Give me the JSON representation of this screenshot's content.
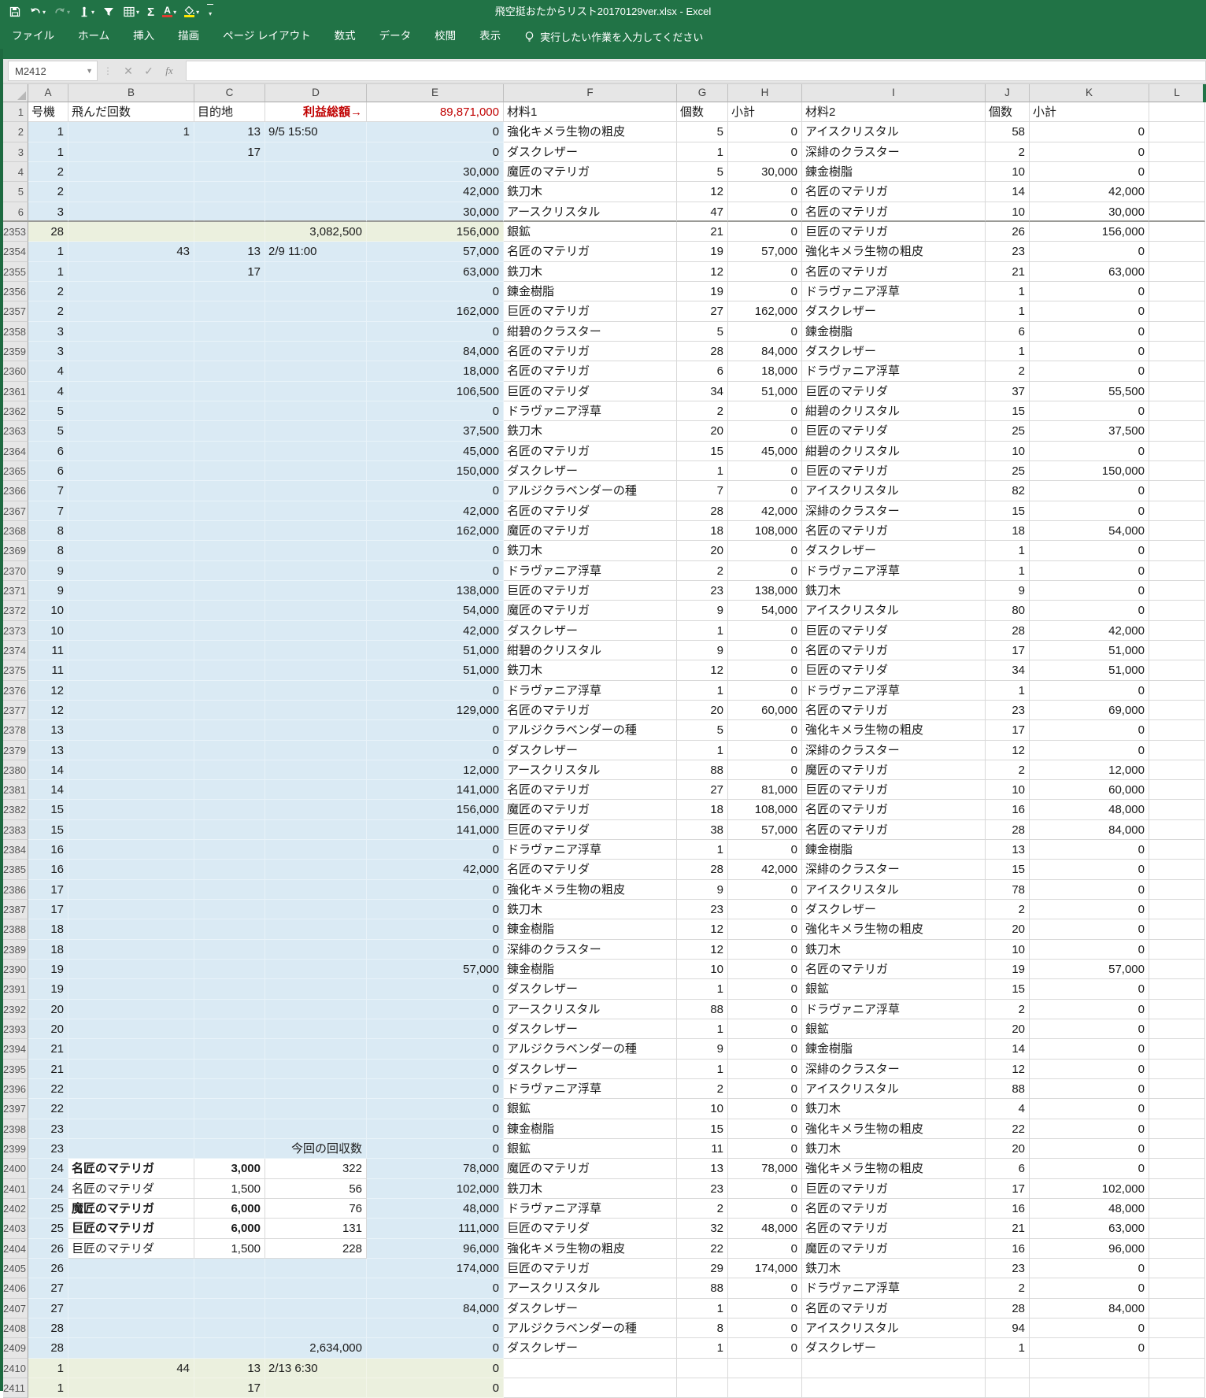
{
  "title_bar": {
    "title": "飛空挺おたからリスト20170129ver.xlsx  -  Excel",
    "qat_icons": [
      "save-icon",
      "undo-icon",
      "redo-icon",
      "touch-mode-icon",
      "filter-icon",
      "table-icon",
      "autosum-icon",
      "font-color-icon",
      "fill-color-icon",
      "customize-quick-access-icon"
    ],
    "autosum_glyph": "Σ",
    "font_color_glyph": "A"
  },
  "ribbon": {
    "tabs": [
      "ファイル",
      "ホーム",
      "挿入",
      "描画",
      "ページ レイアウト",
      "数式",
      "データ",
      "校閲",
      "表示"
    ],
    "tell_me": "実行したい作業を入力してください"
  },
  "formula_bar": {
    "name_box": "M2412",
    "cancel_glyph": "✕",
    "enter_glyph": "✓",
    "fx_label": "fx",
    "formula": ""
  },
  "colors": {
    "excel_green": "#217346",
    "fill_blue": "#daeaf4",
    "fill_yellow": "#ebf0de",
    "accent_red": "#c00000"
  },
  "grid": {
    "column_letters": [
      "A",
      "B",
      "C",
      "D",
      "E",
      "F",
      "G",
      "H",
      "I",
      "J",
      "K",
      "L"
    ],
    "right_align_labels": [
      "利益総額→",
      "今回の回収数"
    ],
    "rows": [
      {
        "n": "1",
        "a": "号機",
        "b": "飛んだ回数",
        "c": "目的地",
        "d": "利益総額→",
        "e": "89,871,000",
        "f": "材料1",
        "g": "個数",
        "h": "小計",
        "i": "材料2",
        "j": "個数",
        "k": "小計",
        "head": 1
      },
      {
        "n": "2",
        "a": "1",
        "b": "1",
        "c": "13",
        "d": "9/5 15:50",
        "e": "0",
        "f": "強化キメラ生物の粗皮",
        "g": "5",
        "h": "0",
        "i": "アイスクリスタル",
        "j": "58",
        "k": "0"
      },
      {
        "n": "3",
        "a": "1",
        "c": "17",
        "e": "0",
        "f": "ダスクレザー",
        "g": "1",
        "h": "0",
        "i": "深緋のクラスター",
        "j": "2",
        "k": "0"
      },
      {
        "n": "4",
        "a": "2",
        "e": "30,000",
        "f": "魔匠のマテリガ",
        "g": "5",
        "h": "30,000",
        "i": "錬金樹脂",
        "j": "10",
        "k": "0"
      },
      {
        "n": "5",
        "a": "2",
        "e": "42,000",
        "f": "鉄刀木",
        "g": "12",
        "h": "0",
        "i": "名匠のマテリガ",
        "j": "14",
        "k": "42,000"
      },
      {
        "n": "6",
        "a": "3",
        "e": "30,000",
        "f": "アースクリスタル",
        "g": "47",
        "h": "0",
        "i": "名匠のマテリガ",
        "j": "10",
        "k": "30,000",
        "thick": 1
      },
      {
        "n": "2353",
        "a": "28",
        "d": "3,082,500",
        "e": "156,000",
        "f": "銀鉱",
        "g": "21",
        "h": "0",
        "i": "巨匠のマテリガ",
        "j": "26",
        "k": "156,000",
        "hl": 1
      },
      {
        "n": "2354",
        "a": "1",
        "b": "43",
        "c": "13",
        "d": "2/9 11:00",
        "e": "57,000",
        "f": "名匠のマテリガ",
        "g": "19",
        "h": "57,000",
        "i": "強化キメラ生物の粗皮",
        "j": "23",
        "k": "0"
      },
      {
        "n": "2355",
        "a": "1",
        "c": "17",
        "e": "63,000",
        "f": "鉄刀木",
        "g": "12",
        "h": "0",
        "i": "名匠のマテリガ",
        "j": "21",
        "k": "63,000"
      },
      {
        "n": "2356",
        "a": "2",
        "e": "0",
        "f": "錬金樹脂",
        "g": "19",
        "h": "0",
        "i": "ドラヴァニア浮草",
        "j": "1",
        "k": "0"
      },
      {
        "n": "2357",
        "a": "2",
        "e": "162,000",
        "f": "巨匠のマテリガ",
        "g": "27",
        "h": "162,000",
        "i": "ダスクレザー",
        "j": "1",
        "k": "0"
      },
      {
        "n": "2358",
        "a": "3",
        "e": "0",
        "f": "紺碧のクラスター",
        "g": "5",
        "h": "0",
        "i": "錬金樹脂",
        "j": "6",
        "k": "0"
      },
      {
        "n": "2359",
        "a": "3",
        "e": "84,000",
        "f": "名匠のマテリガ",
        "g": "28",
        "h": "84,000",
        "i": "ダスクレザー",
        "j": "1",
        "k": "0"
      },
      {
        "n": "2360",
        "a": "4",
        "e": "18,000",
        "f": "名匠のマテリガ",
        "g": "6",
        "h": "18,000",
        "i": "ドラヴァニア浮草",
        "j": "2",
        "k": "0"
      },
      {
        "n": "2361",
        "a": "4",
        "e": "106,500",
        "f": "巨匠のマテリダ",
        "g": "34",
        "h": "51,000",
        "i": "巨匠のマテリダ",
        "j": "37",
        "k": "55,500"
      },
      {
        "n": "2362",
        "a": "5",
        "e": "0",
        "f": "ドラヴァニア浮草",
        "g": "2",
        "h": "0",
        "i": "紺碧のクリスタル",
        "j": "15",
        "k": "0"
      },
      {
        "n": "2363",
        "a": "5",
        "e": "37,500",
        "f": "鉄刀木",
        "g": "20",
        "h": "0",
        "i": "巨匠のマテリダ",
        "j": "25",
        "k": "37,500"
      },
      {
        "n": "2364",
        "a": "6",
        "e": "45,000",
        "f": "名匠のマテリガ",
        "g": "15",
        "h": "45,000",
        "i": "紺碧のクリスタル",
        "j": "10",
        "k": "0"
      },
      {
        "n": "2365",
        "a": "6",
        "e": "150,000",
        "f": "ダスクレザー",
        "g": "1",
        "h": "0",
        "i": "巨匠のマテリガ",
        "j": "25",
        "k": "150,000"
      },
      {
        "n": "2366",
        "a": "7",
        "e": "0",
        "f": "アルジクラベンダーの種",
        "g": "7",
        "h": "0",
        "i": "アイスクリスタル",
        "j": "82",
        "k": "0"
      },
      {
        "n": "2367",
        "a": "7",
        "e": "42,000",
        "f": "名匠のマテリダ",
        "g": "28",
        "h": "42,000",
        "i": "深緋のクラスター",
        "j": "15",
        "k": "0"
      },
      {
        "n": "2368",
        "a": "8",
        "e": "162,000",
        "f": "魔匠のマテリガ",
        "g": "18",
        "h": "108,000",
        "i": "名匠のマテリガ",
        "j": "18",
        "k": "54,000"
      },
      {
        "n": "2369",
        "a": "8",
        "e": "0",
        "f": "鉄刀木",
        "g": "20",
        "h": "0",
        "i": "ダスクレザー",
        "j": "1",
        "k": "0"
      },
      {
        "n": "2370",
        "a": "9",
        "e": "0",
        "f": "ドラヴァニア浮草",
        "g": "2",
        "h": "0",
        "i": "ドラヴァニア浮草",
        "j": "1",
        "k": "0"
      },
      {
        "n": "2371",
        "a": "9",
        "e": "138,000",
        "f": "巨匠のマテリガ",
        "g": "23",
        "h": "138,000",
        "i": "鉄刀木",
        "j": "9",
        "k": "0"
      },
      {
        "n": "2372",
        "a": "10",
        "e": "54,000",
        "f": "魔匠のマテリガ",
        "g": "9",
        "h": "54,000",
        "i": "アイスクリスタル",
        "j": "80",
        "k": "0"
      },
      {
        "n": "2373",
        "a": "10",
        "e": "42,000",
        "f": "ダスクレザー",
        "g": "1",
        "h": "0",
        "i": "巨匠のマテリダ",
        "j": "28",
        "k": "42,000"
      },
      {
        "n": "2374",
        "a": "11",
        "e": "51,000",
        "f": "紺碧のクリスタル",
        "g": "9",
        "h": "0",
        "i": "名匠のマテリガ",
        "j": "17",
        "k": "51,000"
      },
      {
        "n": "2375",
        "a": "11",
        "e": "51,000",
        "f": "鉄刀木",
        "g": "12",
        "h": "0",
        "i": "巨匠のマテリダ",
        "j": "34",
        "k": "51,000"
      },
      {
        "n": "2376",
        "a": "12",
        "e": "0",
        "f": "ドラヴァニア浮草",
        "g": "1",
        "h": "0",
        "i": "ドラヴァニア浮草",
        "j": "1",
        "k": "0"
      },
      {
        "n": "2377",
        "a": "12",
        "e": "129,000",
        "f": "名匠のマテリガ",
        "g": "20",
        "h": "60,000",
        "i": "名匠のマテリガ",
        "j": "23",
        "k": "69,000"
      },
      {
        "n": "2378",
        "a": "13",
        "e": "0",
        "f": "アルジクラベンダーの種",
        "g": "5",
        "h": "0",
        "i": "強化キメラ生物の粗皮",
        "j": "17",
        "k": "0"
      },
      {
        "n": "2379",
        "a": "13",
        "e": "0",
        "f": "ダスクレザー",
        "g": "1",
        "h": "0",
        "i": "深緋のクラスター",
        "j": "12",
        "k": "0"
      },
      {
        "n": "2380",
        "a": "14",
        "e": "12,000",
        "f": "アースクリスタル",
        "g": "88",
        "h": "0",
        "i": "魔匠のマテリガ",
        "j": "2",
        "k": "12,000"
      },
      {
        "n": "2381",
        "a": "14",
        "e": "141,000",
        "f": "名匠のマテリガ",
        "g": "27",
        "h": "81,000",
        "i": "巨匠のマテリガ",
        "j": "10",
        "k": "60,000"
      },
      {
        "n": "2382",
        "a": "15",
        "e": "156,000",
        "f": "魔匠のマテリガ",
        "g": "18",
        "h": "108,000",
        "i": "名匠のマテリガ",
        "j": "16",
        "k": "48,000"
      },
      {
        "n": "2383",
        "a": "15",
        "e": "141,000",
        "f": "巨匠のマテリダ",
        "g": "38",
        "h": "57,000",
        "i": "名匠のマテリガ",
        "j": "28",
        "k": "84,000"
      },
      {
        "n": "2384",
        "a": "16",
        "e": "0",
        "f": "ドラヴァニア浮草",
        "g": "1",
        "h": "0",
        "i": "錬金樹脂",
        "j": "13",
        "k": "0"
      },
      {
        "n": "2385",
        "a": "16",
        "e": "42,000",
        "f": "名匠のマテリダ",
        "g": "28",
        "h": "42,000",
        "i": "深緋のクラスター",
        "j": "15",
        "k": "0"
      },
      {
        "n": "2386",
        "a": "17",
        "e": "0",
        "f": "強化キメラ生物の粗皮",
        "g": "9",
        "h": "0",
        "i": "アイスクリスタル",
        "j": "78",
        "k": "0"
      },
      {
        "n": "2387",
        "a": "17",
        "e": "0",
        "f": "鉄刀木",
        "g": "23",
        "h": "0",
        "i": "ダスクレザー",
        "j": "2",
        "k": "0"
      },
      {
        "n": "2388",
        "a": "18",
        "e": "0",
        "f": "錬金樹脂",
        "g": "12",
        "h": "0",
        "i": "強化キメラ生物の粗皮",
        "j": "20",
        "k": "0"
      },
      {
        "n": "2389",
        "a": "18",
        "e": "0",
        "f": "深緋のクラスター",
        "g": "12",
        "h": "0",
        "i": "鉄刀木",
        "j": "10",
        "k": "0"
      },
      {
        "n": "2390",
        "a": "19",
        "e": "57,000",
        "f": "錬金樹脂",
        "g": "10",
        "h": "0",
        "i": "名匠のマテリガ",
        "j": "19",
        "k": "57,000"
      },
      {
        "n": "2391",
        "a": "19",
        "e": "0",
        "f": "ダスクレザー",
        "g": "1",
        "h": "0",
        "i": "銀鉱",
        "j": "15",
        "k": "0"
      },
      {
        "n": "2392",
        "a": "20",
        "e": "0",
        "f": "アースクリスタル",
        "g": "88",
        "h": "0",
        "i": "ドラヴァニア浮草",
        "j": "2",
        "k": "0"
      },
      {
        "n": "2393",
        "a": "20",
        "e": "0",
        "f": "ダスクレザー",
        "g": "1",
        "h": "0",
        "i": "銀鉱",
        "j": "20",
        "k": "0"
      },
      {
        "n": "2394",
        "a": "21",
        "e": "0",
        "f": "アルジクラベンダーの種",
        "g": "9",
        "h": "0",
        "i": "錬金樹脂",
        "j": "14",
        "k": "0"
      },
      {
        "n": "2395",
        "a": "21",
        "e": "0",
        "f": "ダスクレザー",
        "g": "1",
        "h": "0",
        "i": "深緋のクラスター",
        "j": "12",
        "k": "0"
      },
      {
        "n": "2396",
        "a": "22",
        "e": "0",
        "f": "ドラヴァニア浮草",
        "g": "2",
        "h": "0",
        "i": "アイスクリスタル",
        "j": "88",
        "k": "0"
      },
      {
        "n": "2397",
        "a": "22",
        "e": "0",
        "f": "銀鉱",
        "g": "10",
        "h": "0",
        "i": "鉄刀木",
        "j": "4",
        "k": "0"
      },
      {
        "n": "2398",
        "a": "23",
        "e": "0",
        "f": "錬金樹脂",
        "g": "15",
        "h": "0",
        "i": "強化キメラ生物の粗皮",
        "j": "22",
        "k": "0"
      },
      {
        "n": "2399",
        "a": "23",
        "d": "今回の回収数",
        "e": "0",
        "f": "銀鉱",
        "g": "11",
        "h": "0",
        "i": "鉄刀木",
        "j": "20",
        "k": "0"
      },
      {
        "n": "2400",
        "a": "24",
        "b": "名匠のマテリガ",
        "c": "3,000",
        "d": "322",
        "e": "78,000",
        "f": "魔匠のマテリガ",
        "g": "13",
        "h": "78,000",
        "i": "強化キメラ生物の粗皮",
        "j": "6",
        "k": "0",
        "leg": 1,
        "bold": 1
      },
      {
        "n": "2401",
        "a": "24",
        "b": "名匠のマテリダ",
        "c": "1,500",
        "d": "56",
        "e": "102,000",
        "f": "鉄刀木",
        "g": "23",
        "h": "0",
        "i": "巨匠のマテリガ",
        "j": "17",
        "k": "102,000",
        "leg": 1
      },
      {
        "n": "2402",
        "a": "25",
        "b": "魔匠のマテリガ",
        "c": "6,000",
        "d": "76",
        "e": "48,000",
        "f": "ドラヴァニア浮草",
        "g": "2",
        "h": "0",
        "i": "名匠のマテリガ",
        "j": "16",
        "k": "48,000",
        "leg": 1,
        "bold": 1
      },
      {
        "n": "2403",
        "a": "25",
        "b": "巨匠のマテリガ",
        "c": "6,000",
        "d": "131",
        "e": "111,000",
        "f": "巨匠のマテリダ",
        "g": "32",
        "h": "48,000",
        "i": "名匠のマテリガ",
        "j": "21",
        "k": "63,000",
        "leg": 1,
        "bold": 1
      },
      {
        "n": "2404",
        "a": "26",
        "b": "巨匠のマテリダ",
        "c": "1,500",
        "d": "228",
        "e": "96,000",
        "f": "強化キメラ生物の粗皮",
        "g": "22",
        "h": "0",
        "i": "魔匠のマテリガ",
        "j": "16",
        "k": "96,000",
        "leg": 1
      },
      {
        "n": "2405",
        "a": "26",
        "e": "174,000",
        "f": "巨匠のマテリガ",
        "g": "29",
        "h": "174,000",
        "i": "鉄刀木",
        "j": "23",
        "k": "0"
      },
      {
        "n": "2406",
        "a": "27",
        "e": "0",
        "f": "アースクリスタル",
        "g": "88",
        "h": "0",
        "i": "ドラヴァニア浮草",
        "j": "2",
        "k": "0"
      },
      {
        "n": "2407",
        "a": "27",
        "e": "84,000",
        "f": "ダスクレザー",
        "g": "1",
        "h": "0",
        "i": "名匠のマテリガ",
        "j": "28",
        "k": "84,000"
      },
      {
        "n": "2408",
        "a": "28",
        "e": "0",
        "f": "アルジクラベンダーの種",
        "g": "8",
        "h": "0",
        "i": "アイスクリスタル",
        "j": "94",
        "k": "0"
      },
      {
        "n": "2409",
        "a": "28",
        "d": "2,634,000",
        "e": "0",
        "f": "ダスクレザー",
        "g": "1",
        "h": "0",
        "i": "ダスクレザー",
        "j": "1",
        "k": "0"
      },
      {
        "n": "2410",
        "a": "1",
        "b": "44",
        "c": "13",
        "d": "2/13 6:30",
        "e": "0",
        "hl": 1
      },
      {
        "n": "2411",
        "a": "1",
        "c": "17",
        "e": "0",
        "hl": 1
      }
    ]
  }
}
